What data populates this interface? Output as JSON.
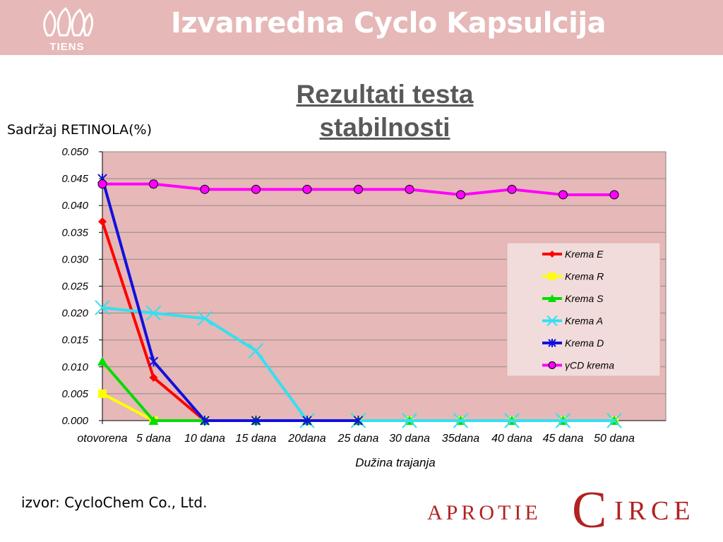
{
  "header": {
    "logo_text": "TIENS",
    "title": "Izvanredna Cyclo Kapsulcija"
  },
  "subtitle_lines": [
    "Rezultati testa",
    "stabilnosti"
  ],
  "source": "izvor:  CycloChem Co., Ltd.",
  "brand": {
    "left": "APROTIE",
    "initial": "C",
    "right": "IRCE"
  },
  "colors": {
    "header_bg": "#e6b8b7",
    "plot_bg": "#e6b8b7",
    "brand": "#b22222"
  },
  "chart_data": {
    "type": "line",
    "ylabel": "Sadržaj  RETINOLA(%)",
    "xlabel": "Dužina trajanja",
    "categories": [
      "otovorena",
      "5 dana",
      "10 dana",
      "15 dana",
      "20dana",
      "25 dana",
      "30 dana",
      "35dana",
      "40 dana",
      "45 dana",
      "50 dana"
    ],
    "ylim": [
      0,
      0.05
    ],
    "yticks": [
      "0.000",
      "0.005",
      "0.010",
      "0.015",
      "0.020",
      "0.025",
      "0.030",
      "0.035",
      "0.040",
      "0.045",
      "0.050"
    ],
    "grid": true,
    "legend_position": "right",
    "series": [
      {
        "name": "Krema E",
        "color": "#ff0000",
        "marker": "diamond",
        "values": [
          0.037,
          0.008,
          0.0,
          null,
          null,
          null,
          null,
          null,
          null,
          null,
          null
        ]
      },
      {
        "name": "Krema R",
        "color": "#ffff00",
        "marker": "square",
        "values": [
          0.005,
          0.0,
          0.0,
          0.0,
          0.0,
          0.0,
          0.0,
          0.0,
          0.0,
          0.0,
          0.0
        ]
      },
      {
        "name": "Krema S",
        "color": "#00dd00",
        "marker": "triangle",
        "values": [
          0.011,
          0.0,
          0.0,
          0.0,
          0.0,
          0.0,
          0.0,
          0.0,
          0.0,
          0.0,
          0.0
        ]
      },
      {
        "name": "Krema A",
        "color": "#33e0f0",
        "marker": "x",
        "values": [
          0.021,
          0.02,
          0.019,
          0.013,
          0.0,
          0.0,
          0.0,
          0.0,
          0.0,
          0.0,
          0.0
        ]
      },
      {
        "name": "Krema D",
        "color": "#1010e0",
        "marker": "star",
        "values": [
          0.045,
          0.011,
          0.0,
          0.0,
          0.0,
          0.0,
          null,
          null,
          null,
          null,
          null
        ]
      },
      {
        "name": "γCD krema",
        "color": "#ff00ff",
        "marker": "circle",
        "values": [
          0.044,
          0.044,
          0.043,
          0.043,
          0.043,
          0.043,
          0.043,
          0.042,
          0.043,
          0.042,
          0.042
        ]
      }
    ]
  }
}
